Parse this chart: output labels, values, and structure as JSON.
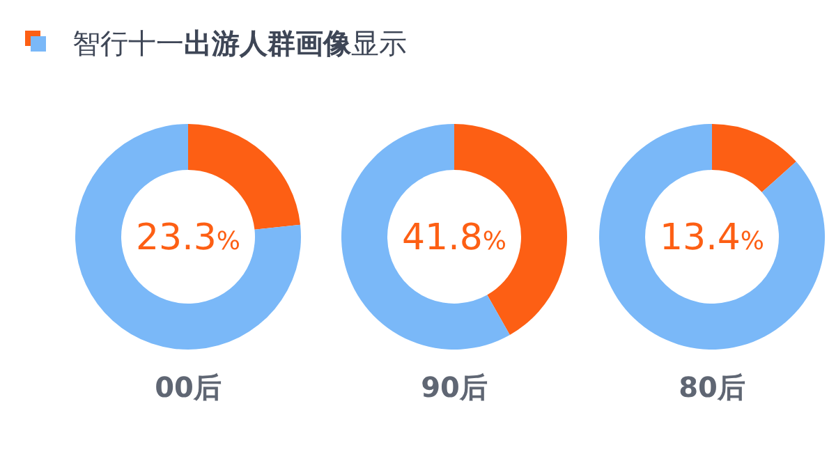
{
  "chart_data": [
    {
      "type": "other",
      "title": "智行十一**出游人群画像**显示"
    },
    {
      "type": "donut",
      "xlabel": "00后",
      "categories": [
        null,
        null
      ],
      "values": [
        23.3,
        76.7
      ],
      "colors": [
        "#fd5f14",
        "#7ab8f8"
      ],
      "annotations": [
        "23.3%"
      ]
    },
    {
      "type": "donut",
      "xlabel": "90后",
      "categories": [
        null,
        null
      ],
      "values": [
        41.8,
        58.2
      ],
      "colors": [
        "#fd5f14",
        "#7ab8f8"
      ],
      "annotations": [
        "41.8%"
      ]
    },
    {
      "type": "donut",
      "xlabel": "80后",
      "categories": [
        null,
        null
      ],
      "values": [
        13.4,
        86.6
      ],
      "colors": [
        "#fd5f14",
        "#7ab8f8"
      ],
      "annotations": [
        "13.4%"
      ]
    }
  ]
}
